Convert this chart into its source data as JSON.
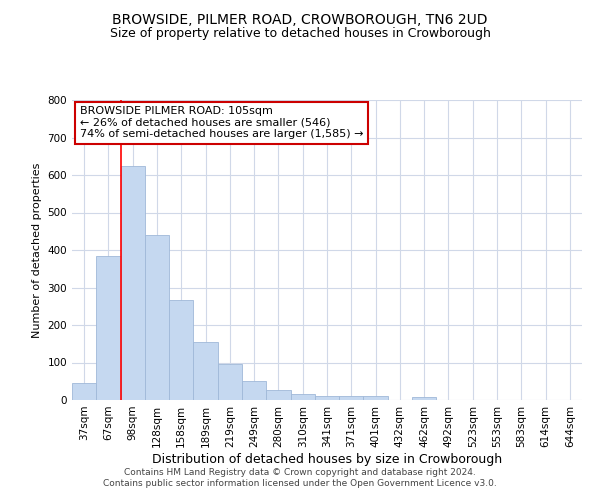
{
  "title": "BROWSIDE, PILMER ROAD, CROWBOROUGH, TN6 2UD",
  "subtitle": "Size of property relative to detached houses in Crowborough",
  "xlabel": "Distribution of detached houses by size in Crowborough",
  "ylabel": "Number of detached properties",
  "categories": [
    "37sqm",
    "67sqm",
    "98sqm",
    "128sqm",
    "158sqm",
    "189sqm",
    "219sqm",
    "249sqm",
    "280sqm",
    "310sqm",
    "341sqm",
    "371sqm",
    "401sqm",
    "432sqm",
    "462sqm",
    "492sqm",
    "523sqm",
    "553sqm",
    "583sqm",
    "614sqm",
    "644sqm"
  ],
  "values": [
    46,
    385,
    625,
    440,
    268,
    155,
    96,
    52,
    28,
    15,
    12,
    11,
    10,
    0,
    8,
    0,
    0,
    0,
    0,
    0,
    0
  ],
  "bar_color": "#c5d8f0",
  "bar_edgecolor": "#a0b8d8",
  "red_line_index": 2,
  "ylim": [
    0,
    800
  ],
  "yticks": [
    0,
    100,
    200,
    300,
    400,
    500,
    600,
    700,
    800
  ],
  "annotation_title": "BROWSIDE PILMER ROAD: 105sqm",
  "annotation_line1": "← 26% of detached houses are smaller (546)",
  "annotation_line2": "74% of semi-detached houses are larger (1,585) →",
  "annotation_box_color": "#ffffff",
  "annotation_box_edgecolor": "#cc0000",
  "footer_line1": "Contains HM Land Registry data © Crown copyright and database right 2024.",
  "footer_line2": "Contains public sector information licensed under the Open Government Licence v3.0.",
  "background_color": "#ffffff",
  "grid_color": "#d0d8e8",
  "title_fontsize": 10,
  "subtitle_fontsize": 9,
  "ylabel_fontsize": 8,
  "xlabel_fontsize": 9,
  "footer_fontsize": 6.5,
  "annotation_fontsize": 8,
  "tick_fontsize": 7.5
}
